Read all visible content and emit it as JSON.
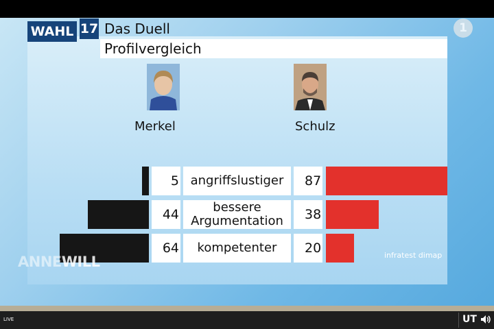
{
  "header": {
    "wahl": "WAHL",
    "number": "17",
    "title": "Das Duell",
    "subtitle": "Profilvergleich"
  },
  "logo": {
    "channel": "1"
  },
  "candidates": {
    "left": "Merkel",
    "right": "Schulz"
  },
  "chart_data": {
    "type": "bar",
    "categories": [
      "angriffslustiger",
      "bessere Argumentation",
      "kompetenter"
    ],
    "category_lines": [
      [
        "angriffslustiger"
      ],
      [
        "bessere",
        "Argumentation"
      ],
      [
        "kompetenter"
      ]
    ],
    "series": [
      {
        "name": "Merkel",
        "values": [
          5,
          44,
          64
        ],
        "color": "#161616"
      },
      {
        "name": "Schulz",
        "values": [
          87,
          38,
          20
        ],
        "color": "#e3312c"
      }
    ]
  },
  "source": "infratest dimap",
  "watermark": {
    "part1": "ANNE",
    "part2": "WILL"
  },
  "player": {
    "live": "LIVE",
    "subtitles": "UT"
  }
}
